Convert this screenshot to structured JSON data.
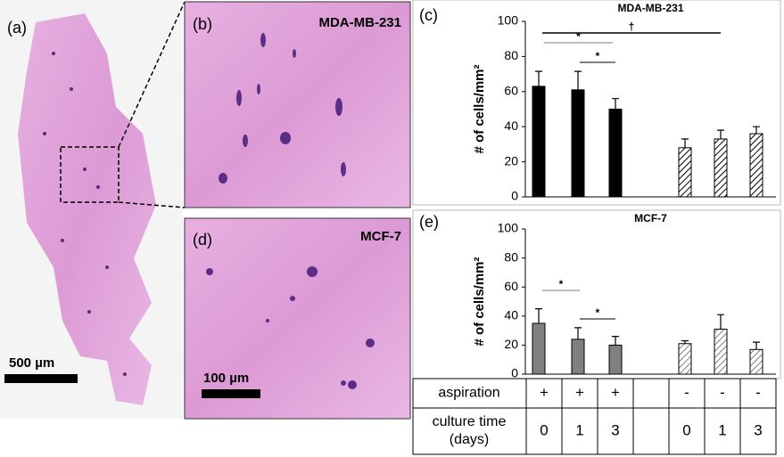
{
  "panels": {
    "a": {
      "label": "(a)",
      "scale": "500 µm"
    },
    "b": {
      "label": "(b)",
      "title": "MDA-MB-231"
    },
    "d": {
      "label": "(d)",
      "title": "MCF-7",
      "scale": "100 µm"
    }
  },
  "chart_data": [
    {
      "type": "bar",
      "label": "(c)",
      "title": "MDA-MB-231",
      "y_label": "# of cells/mm²",
      "ylim": [
        0,
        100
      ],
      "yticks": [
        0,
        20,
        40,
        60,
        80,
        100
      ],
      "series": [
        {
          "color": "#000000",
          "values": [
            63,
            61,
            50
          ],
          "errors": [
            8.5,
            10.5,
            6
          ]
        },
        {
          "color": "#000000",
          "hatch": true,
          "values": [
            28,
            33,
            36
          ],
          "errors": [
            5,
            5,
            4
          ]
        }
      ],
      "annotations": [
        {
          "text": "*"
        },
        {
          "text": "*"
        },
        {
          "text": "†"
        }
      ]
    },
    {
      "type": "bar",
      "label": "(e)",
      "title": "MCF-7",
      "y_label": "# of cells/mm²",
      "ylim": [
        0,
        100
      ],
      "yticks": [
        0,
        20,
        40,
        60,
        80,
        100
      ],
      "series": [
        {
          "color": "#808080",
          "values": [
            35,
            24,
            20
          ],
          "errors": [
            10,
            8,
            6
          ]
        },
        {
          "color": "#808080",
          "hatch": true,
          "values": [
            21,
            31,
            17
          ],
          "errors": [
            2,
            10,
            5
          ]
        }
      ],
      "annotations": [
        {
          "text": "*"
        },
        {
          "text": "*"
        }
      ]
    }
  ],
  "table": {
    "row_headers": [
      [
        "aspiration"
      ],
      [
        "culture time",
        "(days)"
      ]
    ],
    "groups": [
      {
        "aspiration": [
          "+",
          "+",
          "+"
        ],
        "culture_time": [
          "0",
          "1",
          "3"
        ]
      },
      {
        "aspiration": [
          "-",
          "-",
          "-"
        ],
        "culture_time": [
          "0",
          "1",
          "3"
        ]
      }
    ]
  }
}
